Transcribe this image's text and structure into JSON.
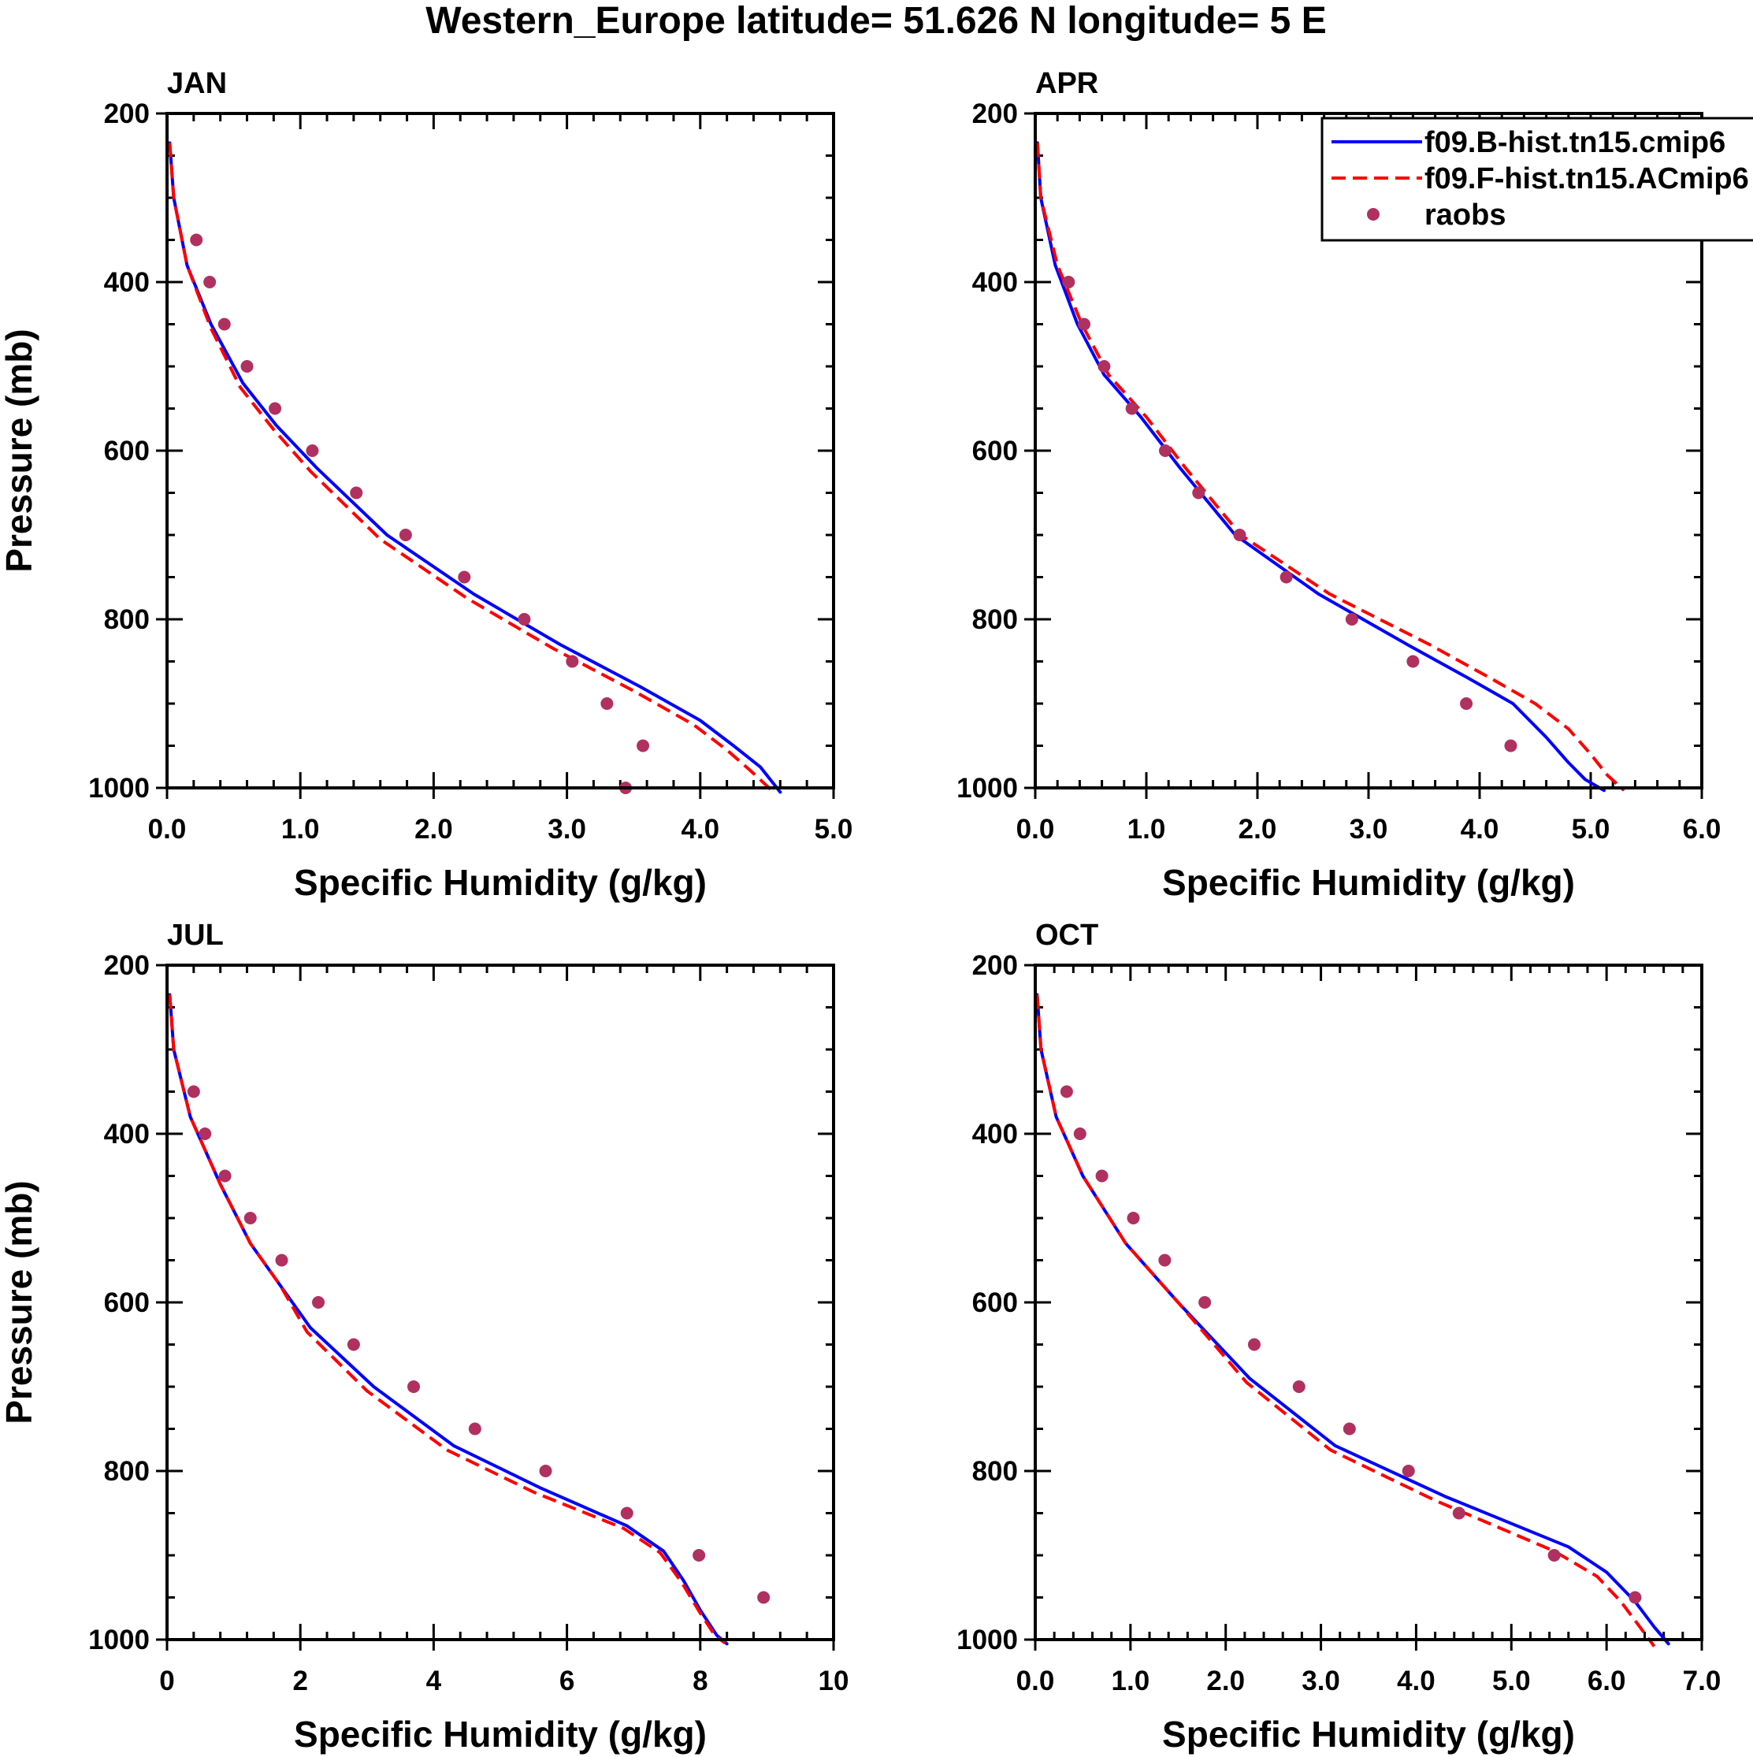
{
  "main_title": "Western_Europe  latitude= 51.626 N longitude= 5 E",
  "colors": {
    "model_b": "#0000ff",
    "model_f": "#ff0000",
    "obs": "#b03060",
    "axes": "#000000"
  },
  "legend": {
    "series": [
      {
        "name": "f09.B-hist.tn15.cmip6",
        "style": "solid"
      },
      {
        "name": "f09.F-hist.tn15.ACmip6",
        "style": "dashed"
      },
      {
        "name": "raobs",
        "style": "marker"
      }
    ],
    "placement": "top-right of APR panel"
  },
  "chart_data": [
    {
      "type": "line",
      "panel": "JAN",
      "title": "JAN",
      "xlabel": "Specific Humidity (g/kg)",
      "ylabel": "Pressure (mb)",
      "xlim": [
        0,
        5
      ],
      "ylim": [
        1000,
        200
      ],
      "xticks": [
        0,
        1,
        2,
        3,
        4,
        5
      ],
      "xtick_labels": [
        "0.0",
        "1.0",
        "2.0",
        "3.0",
        "4.0",
        "5.0"
      ],
      "yticks": [
        200,
        400,
        600,
        800,
        1000
      ],
      "ytick_labels": [
        "200",
        "400",
        "600",
        "800",
        "1000"
      ],
      "series": [
        {
          "name": "f09.B-hist.tn15.cmip6",
          "style": "solid",
          "x": [
            0.02,
            0.05,
            0.15,
            0.33,
            0.57,
            0.82,
            1.12,
            1.65,
            2.3,
            2.95,
            3.55,
            4.0,
            4.25,
            4.45,
            4.6
          ],
          "y": [
            235,
            300,
            380,
            450,
            520,
            570,
            620,
            700,
            770,
            830,
            880,
            920,
            950,
            975,
            1005
          ]
        },
        {
          "name": "f09.F-hist.tn15.ACmip6",
          "style": "dashed",
          "x": [
            0.02,
            0.05,
            0.15,
            0.33,
            0.55,
            0.8,
            1.08,
            1.6,
            2.25,
            2.9,
            3.5,
            3.95,
            4.2,
            4.38,
            4.55
          ],
          "y": [
            235,
            300,
            380,
            455,
            525,
            575,
            625,
            705,
            775,
            835,
            885,
            925,
            955,
            980,
            1005
          ]
        },
        {
          "name": "raobs",
          "style": "marker",
          "x": [
            0.22,
            0.32,
            0.43,
            0.6,
            0.81,
            1.09,
            1.42,
            1.79,
            2.23,
            2.68,
            3.04,
            3.3,
            3.57,
            3.44
          ],
          "y": [
            350,
            400,
            450,
            500,
            550,
            600,
            650,
            700,
            750,
            800,
            850,
            900,
            950,
            1000
          ]
        }
      ]
    },
    {
      "type": "line",
      "panel": "APR",
      "title": "APR",
      "xlabel": "Specific Humidity (g/kg)",
      "ylabel": "",
      "xlim": [
        0,
        6
      ],
      "ylim": [
        1000,
        200
      ],
      "xticks": [
        0,
        1,
        2,
        3,
        4,
        5,
        6
      ],
      "xtick_labels": [
        "0.0",
        "1.0",
        "2.0",
        "3.0",
        "4.0",
        "5.0",
        "6.0"
      ],
      "yticks": [
        200,
        400,
        600,
        800,
        1000
      ],
      "ytick_labels": [
        "200",
        "400",
        "600",
        "800",
        "1000"
      ],
      "series": [
        {
          "name": "f09.B-hist.tn15.cmip6",
          "style": "solid",
          "x": [
            0.02,
            0.05,
            0.18,
            0.38,
            0.62,
            0.95,
            1.3,
            1.8,
            2.55,
            3.35,
            3.9,
            4.3,
            4.6,
            4.8,
            4.95,
            5.12
          ],
          "y": [
            235,
            300,
            380,
            450,
            510,
            560,
            620,
            700,
            770,
            830,
            870,
            900,
            940,
            970,
            990,
            1003
          ]
        },
        {
          "name": "f09.F-hist.tn15.ACmip6",
          "style": "dashed",
          "x": [
            0.02,
            0.05,
            0.2,
            0.42,
            0.66,
            1.0,
            1.35,
            1.85,
            2.65,
            3.55,
            4.1,
            4.5,
            4.8,
            5.0,
            5.15,
            5.3
          ],
          "y": [
            235,
            300,
            380,
            450,
            510,
            560,
            620,
            700,
            770,
            830,
            870,
            900,
            930,
            960,
            985,
            1003
          ]
        },
        {
          "name": "raobs",
          "style": "marker",
          "x": [
            0.3,
            0.44,
            0.62,
            0.87,
            1.17,
            1.47,
            1.84,
            2.26,
            2.85,
            3.4,
            3.88,
            4.28
          ],
          "y": [
            400,
            450,
            500,
            550,
            600,
            650,
            700,
            750,
            800,
            850,
            900,
            950
          ]
        }
      ]
    },
    {
      "type": "line",
      "panel": "JUL",
      "title": "JUL",
      "xlabel": "Specific Humidity (g/kg)",
      "ylabel": "Pressure (mb)",
      "xlim": [
        0,
        10
      ],
      "ylim": [
        1000,
        200
      ],
      "xticks": [
        0,
        2,
        4,
        6,
        8,
        10
      ],
      "xtick_labels": [
        "0",
        "2",
        "4",
        "6",
        "8",
        "10"
      ],
      "yticks": [
        200,
        400,
        600,
        800,
        1000
      ],
      "ytick_labels": [
        "200",
        "400",
        "600",
        "800",
        "1000"
      ],
      "series": [
        {
          "name": "f09.B-hist.tn15.cmip6",
          "style": "solid",
          "x": [
            0.04,
            0.1,
            0.35,
            0.8,
            1.25,
            1.7,
            2.15,
            3.1,
            4.3,
            5.6,
            6.9,
            7.45,
            7.75,
            8.0,
            8.25,
            8.4
          ],
          "y": [
            235,
            300,
            380,
            460,
            530,
            580,
            630,
            700,
            770,
            820,
            865,
            895,
            930,
            965,
            995,
            1005
          ]
        },
        {
          "name": "f09.F-hist.tn15.ACmip6",
          "style": "dashed",
          "x": [
            0.04,
            0.1,
            0.35,
            0.8,
            1.25,
            1.7,
            2.1,
            3.0,
            4.2,
            5.5,
            6.85,
            7.4,
            7.72,
            7.98,
            8.22,
            8.37
          ],
          "y": [
            235,
            300,
            380,
            460,
            530,
            580,
            635,
            705,
            775,
            825,
            868,
            897,
            932,
            966,
            995,
            1004
          ]
        },
        {
          "name": "raobs",
          "style": "marker",
          "x": [
            0.4,
            0.57,
            0.87,
            1.25,
            1.72,
            2.27,
            2.8,
            3.7,
            4.62,
            5.68,
            6.9,
            7.98,
            8.95
          ],
          "y": [
            350,
            400,
            450,
            500,
            550,
            600,
            650,
            700,
            750,
            800,
            850,
            900,
            950
          ]
        }
      ]
    },
    {
      "type": "line",
      "panel": "OCT",
      "title": "OCT",
      "xlabel": "Specific Humidity (g/kg)",
      "ylabel": "",
      "xlim": [
        0,
        7
      ],
      "ylim": [
        1000,
        200
      ],
      "xticks": [
        0,
        1,
        2,
        3,
        4,
        5,
        6,
        7
      ],
      "xtick_labels": [
        "0.0",
        "1.0",
        "2.0",
        "3.0",
        "4.0",
        "5.0",
        "6.0",
        "7.0"
      ],
      "yticks": [
        200,
        400,
        600,
        800,
        1000
      ],
      "ytick_labels": [
        "200",
        "400",
        "600",
        "800",
        "1000"
      ],
      "series": [
        {
          "name": "f09.B-hist.tn15.cmip6",
          "style": "solid",
          "x": [
            0.02,
            0.06,
            0.22,
            0.5,
            0.95,
            1.5,
            2.25,
            3.15,
            4.3,
            5.6,
            6.0,
            6.3,
            6.5,
            6.65
          ],
          "y": [
            235,
            300,
            380,
            450,
            530,
            600,
            690,
            770,
            830,
            890,
            920,
            955,
            985,
            1005
          ]
        },
        {
          "name": "f09.F-hist.tn15.ACmip6",
          "style": "dashed",
          "x": [
            0.02,
            0.06,
            0.22,
            0.5,
            0.95,
            1.5,
            2.22,
            3.1,
            4.2,
            5.45,
            5.9,
            6.15,
            6.35,
            6.5
          ],
          "y": [
            235,
            300,
            380,
            450,
            530,
            600,
            695,
            775,
            835,
            895,
            925,
            955,
            985,
            1008
          ]
        },
        {
          "name": "raobs",
          "style": "marker",
          "x": [
            0.33,
            0.47,
            0.7,
            1.03,
            1.36,
            1.78,
            2.3,
            2.77,
            3.3,
            3.92,
            4.45,
            5.45,
            6.3
          ],
          "y": [
            350,
            400,
            450,
            500,
            550,
            600,
            650,
            700,
            750,
            800,
            850,
            900,
            950
          ]
        }
      ]
    }
  ]
}
